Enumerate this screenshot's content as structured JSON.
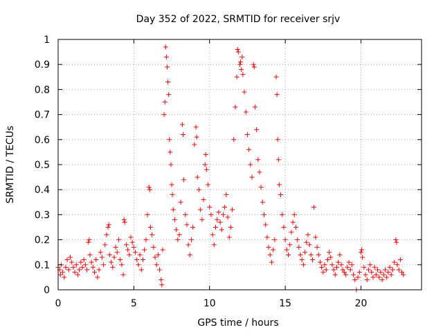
{
  "chart_data": {
    "type": "scatter",
    "title": "Day 352 of 2022, SRMTID for receiver srjv",
    "xlabel": "GPS time / hours",
    "ylabel": "SRMTID / TECUs",
    "xlim": [
      0,
      24
    ],
    "ylim": [
      0,
      1
    ],
    "xticks": [
      "0",
      "5",
      "10",
      "15",
      "20"
    ],
    "xtick_values": [
      0,
      5,
      10,
      15,
      20
    ],
    "yticks": [
      "0",
      "0.1",
      "0.2",
      "0.3",
      "0.4",
      "0.5",
      "0.6",
      "0.7",
      "0.8",
      "0.9",
      "1"
    ],
    "ytick_values": [
      0,
      0.1,
      0.2,
      0.3,
      0.4,
      0.5,
      0.6,
      0.7,
      0.8,
      0.9,
      1.0
    ],
    "grid": true,
    "marker": "+",
    "color": "#ff0000",
    "series": [
      {
        "name": "srjv",
        "points": [
          [
            0.0,
            0.09
          ],
          [
            0.1,
            0.08
          ],
          [
            0.15,
            0.06
          ],
          [
            0.2,
            0.1
          ],
          [
            0.3,
            0.07
          ],
          [
            0.4,
            0.05
          ],
          [
            0.5,
            0.09
          ],
          [
            0.6,
            0.12
          ],
          [
            0.7,
            0.08
          ],
          [
            0.8,
            0.13
          ],
          [
            0.9,
            0.11
          ],
          [
            1.0,
            0.09
          ],
          [
            1.1,
            0.07
          ],
          [
            1.2,
            0.1
          ],
          [
            1.3,
            0.06
          ],
          [
            1.4,
            0.08
          ],
          [
            1.5,
            0.11
          ],
          [
            1.6,
            0.09
          ],
          [
            1.7,
            0.12
          ],
          [
            1.8,
            0.1
          ],
          [
            1.9,
            0.08
          ],
          [
            2.0,
            0.19
          ],
          [
            2.05,
            0.2
          ],
          [
            2.1,
            0.14
          ],
          [
            2.2,
            0.11
          ],
          [
            2.3,
            0.09
          ],
          [
            2.4,
            0.07
          ],
          [
            2.5,
            0.12
          ],
          [
            2.6,
            0.05
          ],
          [
            2.7,
            0.08
          ],
          [
            2.8,
            0.15
          ],
          [
            2.9,
            0.13
          ],
          [
            3.0,
            0.1
          ],
          [
            3.1,
            0.18
          ],
          [
            3.2,
            0.22
          ],
          [
            3.3,
            0.25
          ],
          [
            3.35,
            0.26
          ],
          [
            3.4,
            0.14
          ],
          [
            3.5,
            0.11
          ],
          [
            3.6,
            0.09
          ],
          [
            3.7,
            0.13
          ],
          [
            3.8,
            0.17
          ],
          [
            3.9,
            0.15
          ],
          [
            4.0,
            0.2
          ],
          [
            4.1,
            0.12
          ],
          [
            4.2,
            0.1
          ],
          [
            4.3,
            0.06
          ],
          [
            4.35,
            0.28
          ],
          [
            4.4,
            0.27
          ],
          [
            4.5,
            0.18
          ],
          [
            4.6,
            0.16
          ],
          [
            4.7,
            0.14
          ],
          [
            4.8,
            0.21
          ],
          [
            4.9,
            0.19
          ],
          [
            5.0,
            0.17
          ],
          [
            5.1,
            0.15
          ],
          [
            5.2,
            0.12
          ],
          [
            5.3,
            0.1
          ],
          [
            5.4,
            0.14
          ],
          [
            5.5,
            0.08
          ],
          [
            5.6,
            0.12
          ],
          [
            5.7,
            0.16
          ],
          [
            5.8,
            0.2
          ],
          [
            5.9,
            0.3
          ],
          [
            6.0,
            0.41
          ],
          [
            6.05,
            0.4
          ],
          [
            6.1,
            0.25
          ],
          [
            6.2,
            0.22
          ],
          [
            6.3,
            0.17
          ],
          [
            6.4,
            0.13
          ],
          [
            6.5,
            0.1
          ],
          [
            6.6,
            0.14
          ],
          [
            6.7,
            0.08
          ],
          [
            6.8,
            0.04
          ],
          [
            6.85,
            0.02
          ],
          [
            6.9,
            0.16
          ],
          [
            7.0,
            0.7
          ],
          [
            7.05,
            0.75
          ],
          [
            7.1,
            0.97
          ],
          [
            7.15,
            0.93
          ],
          [
            7.2,
            0.89
          ],
          [
            7.25,
            0.83
          ],
          [
            7.3,
            0.78
          ],
          [
            7.35,
            0.6
          ],
          [
            7.4,
            0.55
          ],
          [
            7.45,
            0.5
          ],
          [
            7.5,
            0.42
          ],
          [
            7.55,
            0.38
          ],
          [
            7.6,
            0.32
          ],
          [
            7.7,
            0.28
          ],
          [
            7.8,
            0.24
          ],
          [
            7.9,
            0.2
          ],
          [
            8.0,
            0.22
          ],
          [
            8.1,
            0.35
          ],
          [
            8.2,
            0.66
          ],
          [
            8.25,
            0.62
          ],
          [
            8.3,
            0.44
          ],
          [
            8.4,
            0.3
          ],
          [
            8.5,
            0.26
          ],
          [
            8.6,
            0.18
          ],
          [
            8.7,
            0.14
          ],
          [
            8.8,
            0.2
          ],
          [
            8.9,
            0.25
          ],
          [
            9.0,
            0.58
          ],
          [
            9.1,
            0.65
          ],
          [
            9.15,
            0.61
          ],
          [
            9.2,
            0.45
          ],
          [
            9.3,
            0.4
          ],
          [
            9.4,
            0.32
          ],
          [
            9.5,
            0.28
          ],
          [
            9.6,
            0.36
          ],
          [
            9.7,
            0.5
          ],
          [
            9.75,
            0.54
          ],
          [
            9.8,
            0.48
          ],
          [
            9.9,
            0.42
          ],
          [
            10.0,
            0.33
          ],
          [
            10.1,
            0.3
          ],
          [
            10.2,
            0.22
          ],
          [
            10.3,
            0.18
          ],
          [
            10.4,
            0.25
          ],
          [
            10.5,
            0.28
          ],
          [
            10.6,
            0.31
          ],
          [
            10.7,
            0.27
          ],
          [
            10.8,
            0.24
          ],
          [
            10.9,
            0.3
          ],
          [
            11.0,
            0.33
          ],
          [
            11.1,
            0.38
          ],
          [
            11.2,
            0.29
          ],
          [
            11.3,
            0.21
          ],
          [
            11.4,
            0.25
          ],
          [
            11.5,
            0.32
          ],
          [
            11.6,
            0.6
          ],
          [
            11.7,
            0.73
          ],
          [
            11.8,
            0.85
          ],
          [
            11.85,
            0.96
          ],
          [
            11.9,
            0.95
          ],
          [
            12.0,
            0.9
          ],
          [
            12.05,
            0.91
          ],
          [
            12.1,
            0.88
          ],
          [
            12.15,
            0.93
          ],
          [
            12.2,
            0.86
          ],
          [
            12.3,
            0.79
          ],
          [
            12.4,
            0.71
          ],
          [
            12.5,
            0.62
          ],
          [
            12.6,
            0.56
          ],
          [
            12.7,
            0.5
          ],
          [
            12.8,
            0.45
          ],
          [
            12.9,
            0.9
          ],
          [
            12.95,
            0.89
          ],
          [
            13.0,
            0.73
          ],
          [
            13.1,
            0.64
          ],
          [
            13.2,
            0.52
          ],
          [
            13.3,
            0.47
          ],
          [
            13.4,
            0.41
          ],
          [
            13.5,
            0.35
          ],
          [
            13.6,
            0.3
          ],
          [
            13.7,
            0.26
          ],
          [
            13.8,
            0.21
          ],
          [
            13.9,
            0.17
          ],
          [
            14.0,
            0.14
          ],
          [
            14.1,
            0.11
          ],
          [
            14.2,
            0.16
          ],
          [
            14.3,
            0.2
          ],
          [
            14.4,
            0.85
          ],
          [
            14.45,
            0.78
          ],
          [
            14.5,
            0.6
          ],
          [
            14.55,
            0.52
          ],
          [
            14.6,
            0.42
          ],
          [
            14.7,
            0.38
          ],
          [
            14.8,
            0.3
          ],
          [
            14.9,
            0.25
          ],
          [
            15.0,
            0.2
          ],
          [
            15.1,
            0.16
          ],
          [
            15.2,
            0.14
          ],
          [
            15.3,
            0.18
          ],
          [
            15.4,
            0.23
          ],
          [
            15.5,
            0.27
          ],
          [
            15.6,
            0.3
          ],
          [
            15.7,
            0.25
          ],
          [
            15.8,
            0.2
          ],
          [
            15.9,
            0.17
          ],
          [
            16.0,
            0.14
          ],
          [
            16.1,
            0.12
          ],
          [
            16.2,
            0.1
          ],
          [
            16.3,
            0.15
          ],
          [
            16.4,
            0.19
          ],
          [
            16.5,
            0.22
          ],
          [
            16.6,
            0.18
          ],
          [
            16.7,
            0.14
          ],
          [
            16.8,
            0.12
          ],
          [
            16.9,
            0.33
          ],
          [
            17.0,
            0.21
          ],
          [
            17.1,
            0.17
          ],
          [
            17.2,
            0.14
          ],
          [
            17.3,
            0.11
          ],
          [
            17.4,
            0.09
          ],
          [
            17.5,
            0.07
          ],
          [
            17.6,
            0.1
          ],
          [
            17.7,
            0.08
          ],
          [
            17.8,
            0.12
          ],
          [
            17.9,
            0.15
          ],
          [
            18.0,
            0.13
          ],
          [
            18.1,
            0.1
          ],
          [
            18.2,
            0.08
          ],
          [
            18.3,
            0.06
          ],
          [
            18.4,
            0.09
          ],
          [
            18.5,
            0.11
          ],
          [
            18.6,
            0.14
          ],
          [
            18.7,
            0.1
          ],
          [
            18.8,
            0.08
          ],
          [
            18.9,
            0.07
          ],
          [
            19.0,
            0.06
          ],
          [
            19.1,
            0.09
          ],
          [
            19.2,
            0.11
          ],
          [
            19.3,
            0.08
          ],
          [
            19.4,
            0.1
          ],
          [
            19.5,
            0.06
          ],
          [
            19.6,
            0.04
          ],
          [
            19.7,
            0.0
          ],
          [
            19.8,
            0.05
          ],
          [
            19.9,
            0.07
          ],
          [
            20.0,
            0.15
          ],
          [
            20.05,
            0.16
          ],
          [
            20.1,
            0.13
          ],
          [
            20.2,
            0.09
          ],
          [
            20.3,
            0.06
          ],
          [
            20.4,
            0.04
          ],
          [
            20.5,
            0.08
          ],
          [
            20.6,
            0.1
          ],
          [
            20.7,
            0.07
          ],
          [
            20.8,
            0.05
          ],
          [
            20.9,
            0.09
          ],
          [
            21.0,
            0.06
          ],
          [
            21.1,
            0.08
          ],
          [
            21.2,
            0.05
          ],
          [
            21.3,
            0.07
          ],
          [
            21.4,
            0.04
          ],
          [
            21.5,
            0.06
          ],
          [
            21.6,
            0.08
          ],
          [
            21.7,
            0.05
          ],
          [
            21.8,
            0.07
          ],
          [
            21.9,
            0.09
          ],
          [
            22.0,
            0.06
          ],
          [
            22.1,
            0.08
          ],
          [
            22.2,
            0.11
          ],
          [
            22.3,
            0.2
          ],
          [
            22.35,
            0.19
          ],
          [
            22.4,
            0.1
          ],
          [
            22.5,
            0.08
          ],
          [
            22.6,
            0.12
          ],
          [
            22.7,
            0.07
          ],
          [
            22.8,
            0.06
          ]
        ]
      }
    ]
  }
}
